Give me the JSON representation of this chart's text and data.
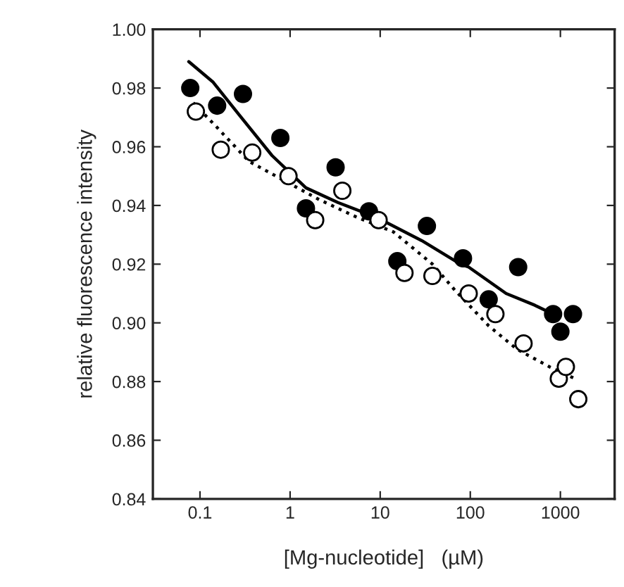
{
  "chart_data": {
    "type": "scatter",
    "xlabel": "[Mg-nucleotide]   (µM)",
    "ylabel": "relative fluorescence intensity",
    "log": "x",
    "xlim": [
      0.03,
      4000
    ],
    "ylim": [
      0.84,
      1.0
    ],
    "xticks": [
      0.1,
      1,
      10,
      100,
      1000
    ],
    "yticks": [
      {
        "value": 0.84,
        "label": "0.84"
      },
      {
        "value": 0.86,
        "label": "0.86"
      },
      {
        "value": 0.88,
        "label": "0.88"
      },
      {
        "value": 0.9,
        "label": "0.90"
      },
      {
        "value": 0.92,
        "label": "0.92"
      },
      {
        "value": 0.94,
        "label": "0.94"
      },
      {
        "value": 0.96,
        "label": "0.96"
      },
      {
        "value": 0.98,
        "label": "0.98"
      },
      {
        "value": 1.0,
        "label": "1.00"
      }
    ],
    "grid": false,
    "series": [
      {
        "marker": "circle",
        "color": "#000000",
        "x": [
          0.078,
          0.155,
          0.3,
          0.78,
          1.5,
          3.2,
          7.5,
          15.5,
          33,
          83,
          160,
          340,
          830,
          1000,
          1380
        ],
        "values": [
          0.98,
          0.974,
          0.978,
          0.963,
          0.939,
          0.953,
          0.938,
          0.921,
          0.933,
          0.922,
          0.908,
          0.919,
          0.903,
          0.897,
          0.903
        ]
      },
      {
        "marker": "circle",
        "color": "#ffffff",
        "x": [
          0.09,
          0.17,
          0.38,
          0.96,
          1.9,
          3.8,
          9.6,
          18.6,
          38,
          96,
          190,
          390,
          960,
          1150,
          1580
        ],
        "values": [
          0.972,
          0.959,
          0.958,
          0.95,
          0.935,
          0.945,
          0.935,
          0.917,
          0.916,
          0.91,
          0.903,
          0.893,
          0.881,
          0.885,
          0.874
        ]
      },
      {
        "type": "line",
        "line_style": "solid",
        "color": "#000000",
        "x": [
          0.075,
          0.14,
          0.27,
          0.63,
          1.5,
          3.4,
          9,
          29,
          78,
          96,
          250,
          520,
          830
        ],
        "values": [
          0.989,
          0.982,
          0.971,
          0.957,
          0.946,
          0.941,
          0.936,
          0.928,
          0.92,
          0.919,
          0.91,
          0.906,
          0.903
        ]
      },
      {
        "type": "line",
        "line_style": "dotted",
        "color": "#000000",
        "x": [
          0.084,
          0.15,
          0.35,
          0.8,
          2.1,
          5.5,
          14,
          38,
          68,
          160,
          330,
          760,
          1450
        ],
        "values": [
          0.975,
          0.967,
          0.955,
          0.949,
          0.942,
          0.936,
          0.931,
          0.92,
          0.911,
          0.899,
          0.891,
          0.885,
          0.881
        ]
      }
    ]
  }
}
